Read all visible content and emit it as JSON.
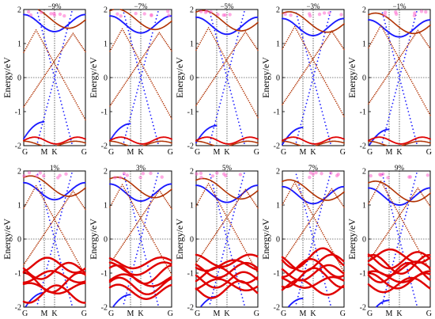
{
  "figure": {
    "ylabel": "Energy/eV",
    "yticks": [
      "2",
      "1",
      "0",
      "-1",
      "-2"
    ],
    "kpoints": [
      "G",
      "M",
      "K",
      "G"
    ],
    "colors": {
      "blue": "#1a1aff",
      "red": "#e00000",
      "orange": "#b03000",
      "pink": "#ff66cc",
      "grid": "#000000"
    }
  },
  "chart_data": {
    "type": "line",
    "x_axis": {
      "kpoints": [
        "G",
        "M",
        "K",
        "G"
      ],
      "kpoint_positions": [
        0,
        1,
        1.5,
        3
      ]
    },
    "y_axis": {
      "label": "Energy/eV",
      "ylim": [
        -2,
        2
      ],
      "ticks": [
        2,
        1,
        0,
        -1,
        -2
      ]
    },
    "fermi_level": 0,
    "panels": [
      {
        "strain": "−9%",
        "row": 0,
        "crossing_energy": 0.0
      },
      {
        "strain": "−7%",
        "row": 0,
        "crossing_energy": 0.0
      },
      {
        "strain": "−5%",
        "row": 0,
        "crossing_energy": 0.0
      },
      {
        "strain": "−3%",
        "row": 0,
        "crossing_energy": 0.0
      },
      {
        "strain": "−1%",
        "row": 0,
        "crossing_energy": 0.0
      },
      {
        "strain": "1%",
        "row": 1,
        "crossing_energy": 0.0
      },
      {
        "strain": "3%",
        "row": 1,
        "crossing_energy": 0.0
      },
      {
        "strain": "5%",
        "row": 1,
        "crossing_energy": 0.0
      },
      {
        "strain": "7%",
        "row": 1,
        "crossing_energy": 0.0
      },
      {
        "strain": "9%",
        "row": 1,
        "crossing_energy": 0.0
      }
    ]
  }
}
